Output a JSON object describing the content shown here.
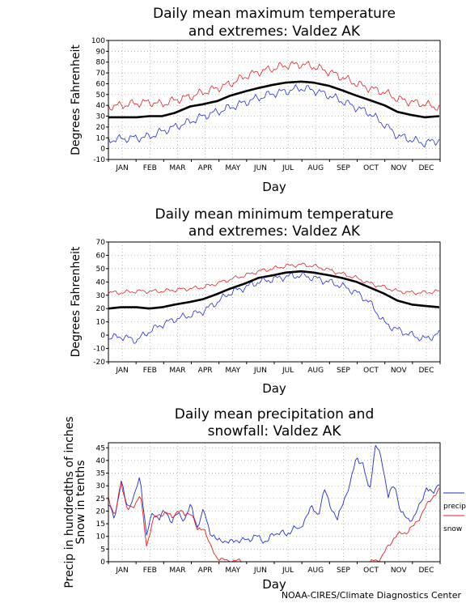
{
  "credit": "NOAA-CIRES/Climate Diagnostics Center",
  "colors": {
    "mean": "#000000",
    "max_extreme": "#e02020",
    "min_extreme": "#1f2fd0",
    "precip": "#1f2fd0",
    "snow": "#e02020",
    "grid": "#9a9a9a"
  },
  "chart_data": [
    {
      "type": "line",
      "title": "Daily mean maximum temperature\nand extremes: Valdez AK",
      "xlabel": "Day",
      "ylabel": "Degrees Fahrenheit",
      "ylim": [
        -10,
        100
      ],
      "yticks": [
        -10,
        0,
        10,
        20,
        30,
        40,
        50,
        60,
        70,
        80,
        90,
        100
      ],
      "xticks": [
        "JAN",
        "FEB",
        "MAR",
        "APR",
        "MAY",
        "JUN",
        "JUL",
        "AUG",
        "SEP",
        "OCT",
        "NOV",
        "DEC"
      ],
      "grid": true,
      "x": [
        1,
        15,
        32,
        46,
        60,
        74,
        91,
        105,
        121,
        135,
        152,
        166,
        182,
        196,
        213,
        227,
        244,
        258,
        274,
        288,
        305,
        319,
        335,
        349,
        365
      ],
      "series": [
        {
          "values": [
            39,
            40,
            42,
            43,
            41,
            45,
            48,
            52,
            56,
            60,
            67,
            71,
            74,
            77,
            78,
            76,
            71,
            66,
            60,
            56,
            52,
            46,
            43,
            41,
            38
          ]
        },
        {
          "values": [
            29,
            29,
            29,
            30,
            30,
            33,
            39,
            41,
            44,
            49,
            53,
            56,
            59,
            61,
            62,
            61,
            58,
            54,
            49,
            45,
            40,
            34,
            31,
            29,
            30
          ]
        },
        {
          "values": [
            8,
            9,
            10,
            11,
            16,
            20,
            25,
            30,
            34,
            38,
            43,
            47,
            51,
            53,
            56,
            54,
            49,
            44,
            38,
            33,
            22,
            12,
            8,
            5,
            8
          ]
        }
      ]
    },
    {
      "type": "line",
      "title": "Daily mean minimum temperature\nand extremes: Valdez AK",
      "xlabel": "Day",
      "ylabel": "Degrees Fahrenheit",
      "ylim": [
        -20,
        70
      ],
      "yticks": [
        -20,
        -10,
        0,
        10,
        20,
        30,
        40,
        50,
        60,
        70
      ],
      "xticks": [
        "JAN",
        "FEB",
        "MAR",
        "APR",
        "MAY",
        "JUN",
        "JUL",
        "AUG",
        "SEP",
        "OCT",
        "NOV",
        "DEC"
      ],
      "grid": true,
      "x": [
        1,
        15,
        32,
        46,
        60,
        74,
        91,
        105,
        121,
        135,
        152,
        166,
        182,
        196,
        213,
        227,
        244,
        258,
        274,
        288,
        305,
        319,
        335,
        349,
        365
      ],
      "series": [
        {
          "values": [
            32,
            32,
            33,
            33,
            33,
            34,
            35,
            36,
            39,
            42,
            45,
            48,
            50,
            52,
            53,
            52,
            49,
            46,
            43,
            39,
            36,
            33,
            32,
            32,
            33
          ]
        },
        {
          "values": [
            20,
            21,
            21,
            20,
            21,
            23,
            25,
            27,
            31,
            35,
            39,
            43,
            45,
            47,
            48,
            47,
            45,
            43,
            40,
            36,
            31,
            26,
            23,
            22,
            21
          ]
        },
        {
          "values": [
            -2,
            -1,
            -4,
            3,
            8,
            12,
            15,
            18,
            25,
            32,
            36,
            40,
            42,
            44,
            45,
            43,
            40,
            37,
            32,
            25,
            9,
            4,
            0,
            -3,
            1
          ]
        }
      ]
    },
    {
      "type": "line",
      "title": "Daily mean precipitation and\nsnowfall: Valdez AK",
      "xlabel": "Day",
      "ylabel": "Precip in hundredths of inches\nSnow in tenths",
      "ylim": [
        0,
        47
      ],
      "yticks": [
        0,
        5,
        10,
        15,
        20,
        25,
        30,
        35,
        40,
        45
      ],
      "xticks": [
        "JAN",
        "FEB",
        "MAR",
        "APR",
        "MAY",
        "JUN",
        "JUL",
        "AUG",
        "SEP",
        "OCT",
        "NOV",
        "DEC"
      ],
      "grid": true,
      "x": [
        1,
        8,
        15,
        22,
        29,
        36,
        43,
        50,
        57,
        64,
        71,
        78,
        85,
        92,
        99,
        106,
        113,
        120,
        127,
        134,
        141,
        148,
        155,
        162,
        169,
        176,
        183,
        190,
        197,
        204,
        211,
        218,
        225,
        232,
        239,
        246,
        253,
        260,
        267,
        274,
        281,
        288,
        295,
        302,
        309,
        316,
        323,
        330,
        337,
        344,
        351,
        358,
        365
      ],
      "series": [
        {
          "name": "precip",
          "values": [
            22,
            18,
            31,
            22,
            25,
            34,
            10,
            20,
            17,
            20,
            16,
            19,
            17,
            22,
            14,
            20,
            12,
            8,
            9,
            7,
            9,
            8,
            9,
            10,
            9,
            8,
            11,
            12,
            10,
            14,
            12,
            18,
            21,
            19,
            28,
            22,
            16,
            25,
            30,
            42,
            38,
            28,
            46,
            40,
            26,
            30,
            20,
            16,
            18,
            22,
            30,
            26,
            32
          ]
        },
        {
          "name": "snow",
          "values": [
            26,
            17,
            32,
            20,
            22,
            27,
            6,
            17,
            18,
            20,
            17,
            21,
            18,
            20,
            12,
            14,
            6,
            2,
            0.5,
            0.3,
            0.2,
            0.1,
            0,
            0,
            0,
            0,
            0,
            0,
            0,
            0,
            0,
            0,
            0,
            0,
            0,
            0,
            0,
            0,
            0,
            0,
            0,
            0,
            0.3,
            2,
            6,
            10,
            11,
            12,
            14,
            18,
            22,
            26,
            28
          ]
        }
      ]
    }
  ]
}
